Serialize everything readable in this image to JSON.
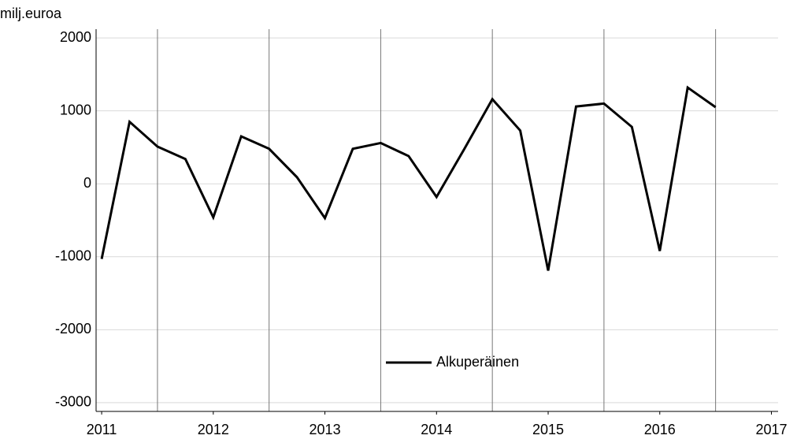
{
  "chart_data": {
    "type": "line",
    "y_label": "milj.euroa",
    "x": [
      2011,
      2011.25,
      2011.5,
      2011.75,
      2012,
      2012.25,
      2012.5,
      2012.75,
      2013,
      2013.25,
      2013.5,
      2013.75,
      2014,
      2014.25,
      2014.5,
      2014.75,
      2015,
      2015.25,
      2015.5,
      2015.75,
      2016,
      2016.25,
      2016.5
    ],
    "series": [
      {
        "name": "Alkuperäinen",
        "color": "#000000",
        "values": [
          -1030,
          850,
          510,
          340,
          -460,
          650,
          480,
          90,
          -470,
          480,
          560,
          380,
          -180,
          480,
          1160,
          730,
          -1190,
          1060,
          1100,
          780,
          -920,
          1320,
          1050
        ]
      }
    ],
    "xlim": [
      2010.95,
      2017.06
    ],
    "xticks": [
      2011,
      2012,
      2013,
      2014,
      2015,
      2016,
      2017
    ],
    "vlines": [
      2011.5,
      2012.5,
      2013.5,
      2014.5,
      2015.5,
      2016.5
    ],
    "ylim": [
      -3120,
      2120
    ],
    "yticks": [
      -3000,
      -2000,
      -1000,
      0,
      1000,
      2000
    ],
    "grid": true,
    "legend": "bottom"
  }
}
